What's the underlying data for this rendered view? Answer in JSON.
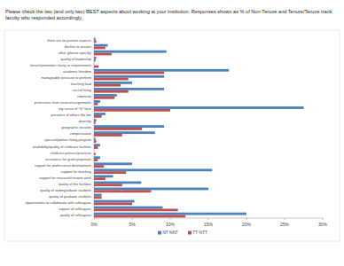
{
  "chart_data": {
    "type": "bar",
    "orientation": "horizontal",
    "title": "Please check the two (and only two) BEST aspects about working at your institution.  Responses shown as % of Non-Tenure and Tenure/Tenure track faculty who responded accordingly.",
    "categories": [
      "there are no positive aspects",
      "decline to answer",
      "other (please specify)",
      "quality of leadership",
      "tenure/promotion clarity or requirements",
      "academic freedom",
      "manageable pressure to perform",
      "teaching load",
      "cost of living",
      "commute",
      "protections from service/assignments",
      "my sense of \"fit\" here",
      "presence of others like me",
      "diversity",
      "geographic location",
      "compensation",
      "spousal/partner hiring program",
      "availability/quality of childcare facilities",
      "childcare policies/practices",
      "assistance for grant proposals",
      "support for professional development",
      "support for teaching",
      "support for research/creative work",
      "quality of the facilities",
      "quality of undergraduate students",
      "quality of graduate students",
      "opportunities to collaborate with colleagues",
      "support of colleagues",
      "quality of colleagues"
    ],
    "series": [
      {
        "name": "NT %NT",
        "color": "#4f81bd",
        "values": [
          0.2,
          1.8,
          9.5,
          0.3,
          0,
          17.7,
          9.2,
          5,
          9.2,
          3,
          0.8,
          27.5,
          1.5,
          0.3,
          9.2,
          8,
          0.2,
          0.8,
          0,
          0.8,
          5,
          15.5,
          2.5,
          6.2,
          15,
          1,
          5.3,
          9,
          20
        ]
      },
      {
        "name": "TT %TT",
        "color": "#c0504d",
        "values": [
          0.3,
          1.5,
          2.3,
          0.2,
          0.6,
          9.2,
          4.5,
          3.5,
          4.5,
          2.7,
          0.5,
          10,
          1,
          0.2,
          6.3,
          3.7,
          0.3,
          0.5,
          0.2,
          0.5,
          1.3,
          4.2,
          1.5,
          3.7,
          7.5,
          1,
          5,
          11,
          12
        ]
      }
    ],
    "xlim": [
      0,
      30
    ],
    "xticks": [
      {
        "value": 0,
        "label": "0%"
      },
      {
        "value": 5,
        "label": "5%"
      },
      {
        "value": 10,
        "label": "10%"
      },
      {
        "value": 15,
        "label": "15%"
      },
      {
        "value": 20,
        "label": "20%"
      },
      {
        "value": 25,
        "label": "25%"
      },
      {
        "value": 30,
        "label": "30%"
      }
    ],
    "grid": false,
    "legend": "bottom"
  }
}
